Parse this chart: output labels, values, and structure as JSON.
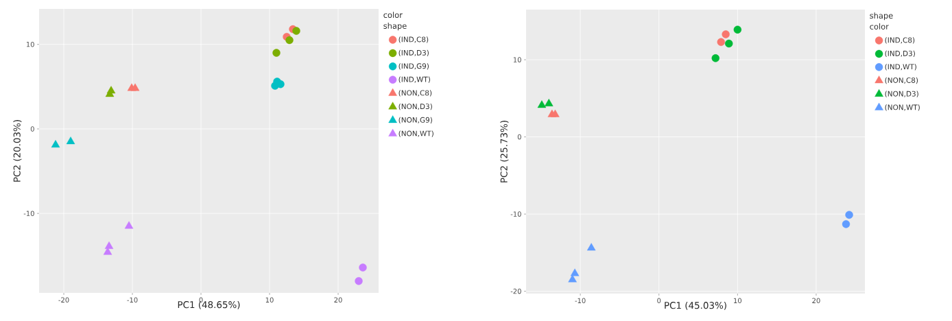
{
  "chart_data": [
    {
      "type": "scatter",
      "xlabel": "PC1 (48.65%)",
      "ylabel": "PC2 (20.03%)",
      "legend_title": "color shape",
      "legend": "right",
      "grid": true,
      "xlim": [
        -23.6,
        25.9
      ],
      "ylim": [
        -19.4,
        14.2
      ],
      "xticks": [
        -20,
        -10,
        0,
        10,
        20
      ],
      "yticks": [
        -10,
        0,
        10
      ],
      "series": [
        {
          "name": "(IND,C8)",
          "color": "#f8766d",
          "marker": "circle",
          "x": [
            12.5,
            13.4
          ],
          "values": [
            10.9,
            11.8
          ]
        },
        {
          "name": "(IND,D3)",
          "color": "#7cae00",
          "marker": "circle",
          "x": [
            11.0,
            12.9,
            13.9
          ],
          "values": [
            9.0,
            10.5,
            11.6
          ]
        },
        {
          "name": "(IND,G9)",
          "color": "#00bfc4",
          "marker": "circle",
          "x": [
            10.8,
            11.1,
            11.6
          ],
          "values": [
            5.1,
            5.6,
            5.3
          ]
        },
        {
          "name": "(IND,WT)",
          "color": "#c77cff",
          "marker": "circle",
          "x": [
            23.6,
            23.0
          ],
          "values": [
            -16.4,
            -18.0
          ]
        },
        {
          "name": "(NON,C8)",
          "color": "#f8766d",
          "marker": "triangle",
          "x": [
            -10.1,
            -9.6
          ],
          "values": [
            4.8,
            4.8
          ]
        },
        {
          "name": "(NON,D3)",
          "color": "#7cae00",
          "marker": "triangle",
          "x": [
            -13.3,
            -13.1
          ],
          "values": [
            4.1,
            4.5
          ]
        },
        {
          "name": "(NON,G9)",
          "color": "#00bfc4",
          "marker": "triangle",
          "x": [
            -21.2,
            -19.0
          ],
          "values": [
            -1.9,
            -1.5
          ]
        },
        {
          "name": "(NON,WT)",
          "color": "#c77cff",
          "marker": "triangle",
          "x": [
            -10.5,
            -13.4,
            -13.6
          ],
          "values": [
            -11.5,
            -13.9,
            -14.6
          ]
        }
      ]
    },
    {
      "type": "scatter",
      "xlabel": "PC1 (45.03%)",
      "ylabel": "PC2 (25.73%)",
      "legend_title": "shape color",
      "legend": "right",
      "grid": true,
      "xlim": [
        -16.9,
        26.2
      ],
      "ylim": [
        -20.3,
        16.5
      ],
      "xticks": [
        -10,
        0,
        10,
        20
      ],
      "yticks": [
        -20,
        -10,
        0,
        10
      ],
      "series": [
        {
          "name": "(IND,C8)",
          "color": "#f8766d",
          "marker": "circle",
          "x": [
            7.9,
            8.5
          ],
          "values": [
            12.3,
            13.3
          ]
        },
        {
          "name": "(IND,D3)",
          "color": "#00ba38",
          "marker": "circle",
          "x": [
            7.2,
            8.9,
            10.0
          ],
          "values": [
            10.2,
            12.1,
            13.9
          ]
        },
        {
          "name": "(IND,WT)",
          "color": "#619cff",
          "marker": "circle",
          "x": [
            24.2,
            23.8
          ],
          "values": [
            -10.1,
            -11.3
          ]
        },
        {
          "name": "(NON,C8)",
          "color": "#f8766d",
          "marker": "triangle",
          "x": [
            -13.6,
            -13.2
          ],
          "values": [
            2.9,
            2.9
          ]
        },
        {
          "name": "(NON,D3)",
          "color": "#00ba38",
          "marker": "triangle",
          "x": [
            -14.9,
            -14.0
          ],
          "values": [
            4.1,
            4.3
          ]
        },
        {
          "name": "(NON,WT)",
          "color": "#619cff",
          "marker": "triangle",
          "x": [
            -8.6,
            -10.7,
            -11.0
          ],
          "values": [
            -14.4,
            -17.7,
            -18.5
          ]
        }
      ]
    }
  ]
}
